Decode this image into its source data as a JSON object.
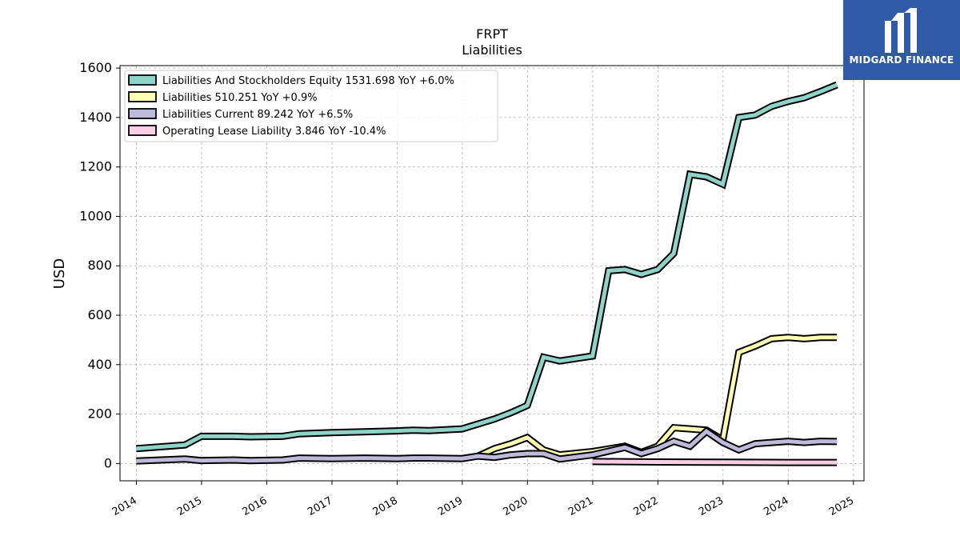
{
  "logo": {
    "text": "MIDGARD FINANCE"
  },
  "chart_data": {
    "type": "line",
    "title": "FRPT",
    "subtitle": "Liabilities",
    "ylabel": "USD",
    "xlabel": "",
    "xlim": [
      "2013-10-01",
      "2025-03-01"
    ],
    "ylim": [
      -70,
      1610
    ],
    "yticks": [
      0,
      200,
      400,
      600,
      800,
      1000,
      1200,
      1400,
      1600
    ],
    "xticks": [
      "2014",
      "2015",
      "2016",
      "2017",
      "2018",
      "2019",
      "2020",
      "2021",
      "2022",
      "2023",
      "2024",
      "2025"
    ],
    "grid": true,
    "legend_position": "top-left",
    "series": [
      {
        "name": "Liabilities And Stockholders Equity",
        "legend": "Liabilities And Stockholders Equity  1531.698 YoY +6.0%",
        "color": "#8dd3c7",
        "points": [
          [
            "2013-12-31",
            60
          ],
          [
            "2014-09-30",
            75
          ],
          [
            "2014-12-31",
            110
          ],
          [
            "2015-06-30",
            110
          ],
          [
            "2015-09-30",
            108
          ],
          [
            "2016-03-31",
            110
          ],
          [
            "2016-06-30",
            120
          ],
          [
            "2016-12-31",
            125
          ],
          [
            "2017-06-30",
            128
          ],
          [
            "2017-12-31",
            132
          ],
          [
            "2018-03-31",
            135
          ],
          [
            "2018-06-30",
            133
          ],
          [
            "2018-12-31",
            140
          ],
          [
            "2019-06-30",
            180
          ],
          [
            "2019-09-30",
            205
          ],
          [
            "2019-12-31",
            235
          ],
          [
            "2020-03-31",
            430
          ],
          [
            "2020-06-30",
            415
          ],
          [
            "2020-12-31",
            435
          ],
          [
            "2021-03-31",
            780
          ],
          [
            "2021-06-30",
            785
          ],
          [
            "2021-09-30",
            765
          ],
          [
            "2021-12-31",
            785
          ],
          [
            "2022-03-31",
            850
          ],
          [
            "2022-06-30",
            1170
          ],
          [
            "2022-09-30",
            1160
          ],
          [
            "2022-12-31",
            1130
          ],
          [
            "2023-03-31",
            1400
          ],
          [
            "2023-06-30",
            1410
          ],
          [
            "2023-09-30",
            1445
          ],
          [
            "2023-12-31",
            1465
          ],
          [
            "2024-03-31",
            1480
          ],
          [
            "2024-06-30",
            1505
          ],
          [
            "2024-09-30",
            1532
          ]
        ]
      },
      {
        "name": "Liabilities",
        "legend": "Liabilities  510.251 YoY +0.9%",
        "color": "#ffffb3",
        "points": [
          [
            "2019-03-31",
            30
          ],
          [
            "2019-06-30",
            60
          ],
          [
            "2019-09-30",
            80
          ],
          [
            "2019-12-31",
            105
          ],
          [
            "2020-03-31",
            55
          ],
          [
            "2020-06-30",
            35
          ],
          [
            "2020-12-31",
            48
          ],
          [
            "2021-06-30",
            70
          ],
          [
            "2021-09-30",
            45
          ],
          [
            "2021-12-31",
            70
          ],
          [
            "2022-03-31",
            145
          ],
          [
            "2022-06-30",
            140
          ],
          [
            "2022-09-30",
            135
          ],
          [
            "2022-12-31",
            95
          ],
          [
            "2023-03-31",
            450
          ],
          [
            "2023-06-30",
            475
          ],
          [
            "2023-09-30",
            505
          ],
          [
            "2023-12-31",
            510
          ],
          [
            "2024-03-31",
            505
          ],
          [
            "2024-06-30",
            510
          ],
          [
            "2024-09-30",
            510
          ]
        ]
      },
      {
        "name": "Liabilities Current",
        "legend": "Liabilities Current  89.242 YoY +6.5%",
        "color": "#bebada",
        "points": [
          [
            "2013-12-31",
            10
          ],
          [
            "2014-09-30",
            18
          ],
          [
            "2014-12-31",
            12
          ],
          [
            "2015-06-30",
            14
          ],
          [
            "2015-09-30",
            12
          ],
          [
            "2016-03-31",
            14
          ],
          [
            "2016-06-30",
            22
          ],
          [
            "2016-12-31",
            20
          ],
          [
            "2017-06-30",
            22
          ],
          [
            "2017-12-31",
            20
          ],
          [
            "2018-03-31",
            22
          ],
          [
            "2018-06-30",
            22
          ],
          [
            "2018-12-31",
            20
          ],
          [
            "2019-03-31",
            30
          ],
          [
            "2019-06-30",
            25
          ],
          [
            "2019-09-30",
            35
          ],
          [
            "2019-12-31",
            40
          ],
          [
            "2020-03-31",
            40
          ],
          [
            "2020-06-30",
            18
          ],
          [
            "2020-12-31",
            35
          ],
          [
            "2021-06-30",
            65
          ],
          [
            "2021-09-30",
            40
          ],
          [
            "2021-12-31",
            60
          ],
          [
            "2022-03-31",
            90
          ],
          [
            "2022-06-30",
            70
          ],
          [
            "2022-09-30",
            130
          ],
          [
            "2022-12-31",
            85
          ],
          [
            "2023-03-31",
            55
          ],
          [
            "2023-06-30",
            80
          ],
          [
            "2023-09-30",
            85
          ],
          [
            "2023-12-31",
            90
          ],
          [
            "2024-03-31",
            85
          ],
          [
            "2024-06-30",
            90
          ],
          [
            "2024-09-30",
            89
          ]
        ]
      },
      {
        "name": "Operating Lease Liability",
        "legend": "Operating Lease Liability  3.846 YoY -10.4%",
        "color": "#fccde5",
        "points": [
          [
            "2020-12-31",
            8
          ],
          [
            "2021-12-31",
            6
          ],
          [
            "2022-12-31",
            5
          ],
          [
            "2023-12-31",
            4
          ],
          [
            "2024-09-30",
            4
          ]
        ]
      }
    ]
  }
}
